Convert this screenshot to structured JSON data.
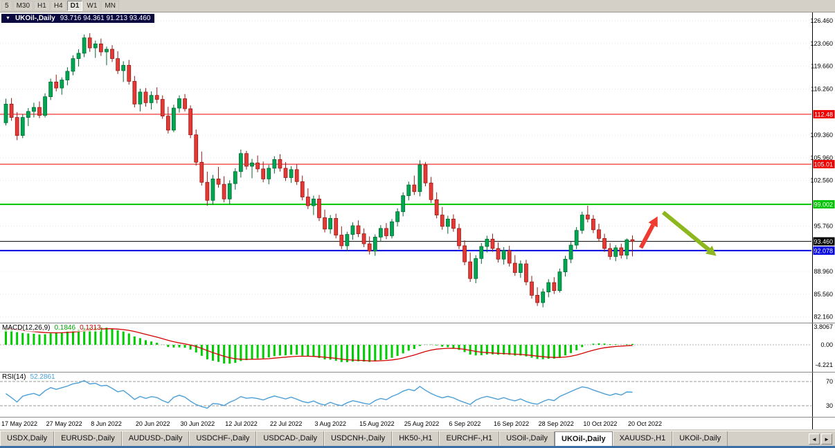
{
  "toolbar": {
    "buttons": [
      {
        "label": "5",
        "active": false
      },
      {
        "label": "M30",
        "active": false
      },
      {
        "label": "H1",
        "active": false
      },
      {
        "label": "H4",
        "active": false
      },
      {
        "label": "D1",
        "active": true
      },
      {
        "label": "W1",
        "active": false
      },
      {
        "label": "MN",
        "active": false
      }
    ]
  },
  "legend": {
    "icon": "▼",
    "symbol": "UKOil-,Daily",
    "ohlc": "93.716 94.361 91.213 93.460"
  },
  "indicators": {
    "macd": {
      "name": "MACD(12,26,9)",
      "main_value": "0.1846",
      "signal_value": "0.1313",
      "scale": [
        3.8067,
        0,
        -4.221
      ],
      "scale_labels": [
        "3.8067",
        "0.00",
        "-4.221"
      ]
    },
    "rsi": {
      "name": "RSI(14)",
      "value": "52.2861",
      "levels": [
        70,
        30
      ]
    }
  },
  "price_axis": {
    "ticks": [
      {
        "price": 126.46,
        "label": "126.460"
      },
      {
        "price": 123.06,
        "label": "123.060"
      },
      {
        "price": 119.66,
        "label": "119.660"
      },
      {
        "price": 116.26,
        "label": "116.260"
      },
      {
        "price": 109.36,
        "label": "109.360"
      },
      {
        "price": 105.96,
        "label": "105.960"
      },
      {
        "price": 102.56,
        "label": "102.560"
      },
      {
        "price": 95.76,
        "label": "95.760"
      },
      {
        "price": 88.96,
        "label": "88.960"
      },
      {
        "price": 85.56,
        "label": "85.560"
      },
      {
        "price": 82.16,
        "label": "82.160"
      }
    ]
  },
  "levels": [
    {
      "price": 112.48,
      "label": "112.48",
      "color": "#ee0000",
      "thickness": 1
    },
    {
      "price": 105.01,
      "label": "105.01",
      "color": "#ee0000",
      "thickness": 1
    },
    {
      "price": 99.002,
      "label": "99.002",
      "color": "#00c400",
      "thickness": 2
    },
    {
      "price": 93.46,
      "label": "93.460",
      "color": "#000000",
      "thickness": 1
    },
    {
      "price": 92.078,
      "label": "92.078",
      "color": "#0000e0",
      "thickness": 2
    }
  ],
  "date_axis": [
    {
      "bar": 0,
      "label": "17 May 2022"
    },
    {
      "bar": 8,
      "label": "27 May 2022"
    },
    {
      "bar": 16,
      "label": "8 Jun 2022"
    },
    {
      "bar": 24,
      "label": "20 Jun 2022"
    },
    {
      "bar": 32,
      "label": "30 Jun 2022"
    },
    {
      "bar": 40,
      "label": "12 Jul 2022"
    },
    {
      "bar": 48,
      "label": "22 Jul 2022"
    },
    {
      "bar": 56,
      "label": "3 Aug 2022"
    },
    {
      "bar": 64,
      "label": "15 Aug 2022"
    },
    {
      "bar": 72,
      "label": "25 Aug 2022"
    },
    {
      "bar": 80,
      "label": "6 Sep 2022"
    },
    {
      "bar": 88,
      "label": "16 Sep 2022"
    },
    {
      "bar": 96,
      "label": "28 Sep 2022"
    },
    {
      "bar": 104,
      "label": "10 Oct 2022"
    },
    {
      "bar": 112,
      "label": "20 Oct 2022"
    }
  ],
  "tabs": {
    "items": [
      {
        "label": "USDX,Daily",
        "active": false
      },
      {
        "label": "EURUSD-,Daily",
        "active": false
      },
      {
        "label": "AUDUSD-,Daily",
        "active": false
      },
      {
        "label": "USDCHF-,Daily",
        "active": false
      },
      {
        "label": "USDCAD-,Daily",
        "active": false
      },
      {
        "label": "USDCNH-,Daily",
        "active": false
      },
      {
        "label": "HK50-,H1",
        "active": false
      },
      {
        "label": "EURCHF-,H1",
        "active": false
      },
      {
        "label": "USOil-,Daily",
        "active": false
      },
      {
        "label": "UKOil-,Daily",
        "active": true
      },
      {
        "label": "XAUUSD-,H1",
        "active": false
      },
      {
        "label": "UKOil-,Daily",
        "active": false
      }
    ],
    "scroll_left": "◄",
    "scroll_right": "►"
  },
  "colors": {
    "up": "#00a651",
    "up_border": "#00662f",
    "down": "#e53935",
    "down_border": "#8e1a14",
    "grid": "#e6e6e6",
    "macd_hist": "#00cc00",
    "macd_signal": "#d40000",
    "rsi_line": "#4a9fd8"
  },
  "chart_data": {
    "type": "candlestick",
    "title": "UKOil-,Daily",
    "current": {
      "open": 93.716,
      "high": 94.361,
      "low": 91.213,
      "close": 93.46
    },
    "price_range_visible": {
      "min": 82.16,
      "max": 126.46
    },
    "candles": [
      [
        111.2,
        114.8,
        110.8,
        114.0
      ],
      [
        114.0,
        114.9,
        111.5,
        112.0
      ],
      [
        112.0,
        112.8,
        108.6,
        109.3
      ],
      [
        109.3,
        112.5,
        108.9,
        112.0
      ],
      [
        112.0,
        113.4,
        110.7,
        112.9
      ],
      [
        112.9,
        114.2,
        112.0,
        113.5
      ],
      [
        113.5,
        114.4,
        111.9,
        112.3
      ],
      [
        112.3,
        115.6,
        112.0,
        115.1
      ],
      [
        115.1,
        117.8,
        114.6,
        117.3
      ],
      [
        117.3,
        118.4,
        115.9,
        116.4
      ],
      [
        116.4,
        118.0,
        115.4,
        117.6
      ],
      [
        117.6,
        119.5,
        116.8,
        118.9
      ],
      [
        118.9,
        121.3,
        118.3,
        120.8
      ],
      [
        120.8,
        122.2,
        119.6,
        121.6
      ],
      [
        121.6,
        124.4,
        121.0,
        123.9
      ],
      [
        123.9,
        124.6,
        121.8,
        122.4
      ],
      [
        122.4,
        123.5,
        120.9,
        123.0
      ],
      [
        123.0,
        123.8,
        121.2,
        121.8
      ],
      [
        121.8,
        122.6,
        119.8,
        122.2
      ],
      [
        122.2,
        122.8,
        120.3,
        120.8
      ],
      [
        120.8,
        121.9,
        118.5,
        119.0
      ],
      [
        119.0,
        120.4,
        117.3,
        119.8
      ],
      [
        119.8,
        120.6,
        116.9,
        117.4
      ],
      [
        117.4,
        118.2,
        113.5,
        114.0
      ],
      [
        114.0,
        116.3,
        112.9,
        115.8
      ],
      [
        115.8,
        116.4,
        113.6,
        114.2
      ],
      [
        114.2,
        115.9,
        113.2,
        115.3
      ],
      [
        115.3,
        116.5,
        114.1,
        114.7
      ],
      [
        114.7,
        115.3,
        111.8,
        112.2
      ],
      [
        112.2,
        113.6,
        109.6,
        110.1
      ],
      [
        110.1,
        113.9,
        109.8,
        113.4
      ],
      [
        113.4,
        115.3,
        112.7,
        114.8
      ],
      [
        114.8,
        115.5,
        112.9,
        113.3
      ],
      [
        113.3,
        113.8,
        108.9,
        109.4
      ],
      [
        109.4,
        110.2,
        104.8,
        105.3
      ],
      [
        105.3,
        106.9,
        101.8,
        102.3
      ],
      [
        102.3,
        103.9,
        98.8,
        99.6
      ],
      [
        99.6,
        103.4,
        98.9,
        102.8
      ],
      [
        102.8,
        104.6,
        101.5,
        102.0
      ],
      [
        102.0,
        103.2,
        99.3,
        99.8
      ],
      [
        99.8,
        102.6,
        99.0,
        102.1
      ],
      [
        102.1,
        104.4,
        101.2,
        103.9
      ],
      [
        103.9,
        107.2,
        103.0,
        106.6
      ],
      [
        106.6,
        107.0,
        104.2,
        104.7
      ],
      [
        104.7,
        105.8,
        102.9,
        105.2
      ],
      [
        105.2,
        106.3,
        103.8,
        104.3
      ],
      [
        104.3,
        105.4,
        102.3,
        102.8
      ],
      [
        102.8,
        104.9,
        102.0,
        104.4
      ],
      [
        104.4,
        106.2,
        103.6,
        105.7
      ],
      [
        105.7,
        106.5,
        103.9,
        104.4
      ],
      [
        104.4,
        105.3,
        102.5,
        103.0
      ],
      [
        103.0,
        104.7,
        102.2,
        104.2
      ],
      [
        104.2,
        105.0,
        101.9,
        102.4
      ],
      [
        102.4,
        103.3,
        99.6,
        100.1
      ],
      [
        100.1,
        101.4,
        98.3,
        98.8
      ],
      [
        98.8,
        100.3,
        97.4,
        99.8
      ],
      [
        99.8,
        100.4,
        96.5,
        97.0
      ],
      [
        97.0,
        98.2,
        94.8,
        95.3
      ],
      [
        95.3,
        97.4,
        94.6,
        96.9
      ],
      [
        96.9,
        97.6,
        93.9,
        94.4
      ],
      [
        94.4,
        95.7,
        92.3,
        92.8
      ],
      [
        92.8,
        94.9,
        92.0,
        94.5
      ],
      [
        94.5,
        96.3,
        93.7,
        95.8
      ],
      [
        95.8,
        96.6,
        94.1,
        94.6
      ],
      [
        94.6,
        95.4,
        92.6,
        93.1
      ],
      [
        93.1,
        94.2,
        91.5,
        92.0
      ],
      [
        92.0,
        94.5,
        91.3,
        94.1
      ],
      [
        94.1,
        95.9,
        93.4,
        95.4
      ],
      [
        95.4,
        96.2,
        93.8,
        94.3
      ],
      [
        94.3,
        96.8,
        93.9,
        96.4
      ],
      [
        96.4,
        98.4,
        95.7,
        97.9
      ],
      [
        97.9,
        100.8,
        97.2,
        100.3
      ],
      [
        100.3,
        102.4,
        99.6,
        101.9
      ],
      [
        101.9,
        103.3,
        100.4,
        100.9
      ],
      [
        100.9,
        105.6,
        100.2,
        104.9
      ],
      [
        104.9,
        105.3,
        101.7,
        102.2
      ],
      [
        102.2,
        103.1,
        99.2,
        99.7
      ],
      [
        99.7,
        100.8,
        96.9,
        97.4
      ],
      [
        97.4,
        98.6,
        95.2,
        95.7
      ],
      [
        95.7,
        97.3,
        94.6,
        96.8
      ],
      [
        96.8,
        97.5,
        94.9,
        95.4
      ],
      [
        95.4,
        96.1,
        92.3,
        92.8
      ],
      [
        92.8,
        93.6,
        89.9,
        90.4
      ],
      [
        90.4,
        91.8,
        87.4,
        87.9
      ],
      [
        87.9,
        91.4,
        87.2,
        90.9
      ],
      [
        90.9,
        93.2,
        90.1,
        92.7
      ],
      [
        92.7,
        94.3,
        91.8,
        93.8
      ],
      [
        93.8,
        94.6,
        91.9,
        92.4
      ],
      [
        92.4,
        93.3,
        90.3,
        90.8
      ],
      [
        90.8,
        92.6,
        90.0,
        92.1
      ],
      [
        92.1,
        92.8,
        89.7,
        90.2
      ],
      [
        90.2,
        91.4,
        88.3,
        88.8
      ],
      [
        88.8,
        90.6,
        88.0,
        90.1
      ],
      [
        90.1,
        90.7,
        86.9,
        87.4
      ],
      [
        87.4,
        88.3,
        84.9,
        85.4
      ],
      [
        85.4,
        86.6,
        83.8,
        84.3
      ],
      [
        84.3,
        86.4,
        83.6,
        85.9
      ],
      [
        85.9,
        87.8,
        85.1,
        87.3
      ],
      [
        87.3,
        88.1,
        85.6,
        86.1
      ],
      [
        86.1,
        89.4,
        85.8,
        88.9
      ],
      [
        88.9,
        91.3,
        88.2,
        90.8
      ],
      [
        90.8,
        93.4,
        90.2,
        92.9
      ],
      [
        92.9,
        95.6,
        92.3,
        95.1
      ],
      [
        95.1,
        97.9,
        94.6,
        97.4
      ],
      [
        97.4,
        98.8,
        96.3,
        96.8
      ],
      [
        96.8,
        97.4,
        94.7,
        95.2
      ],
      [
        95.2,
        96.1,
        93.4,
        93.9
      ],
      [
        93.9,
        94.6,
        91.9,
        92.4
      ],
      [
        92.4,
        93.2,
        90.7,
        91.2
      ],
      [
        91.2,
        92.9,
        90.5,
        92.5
      ],
      [
        92.5,
        93.1,
        90.9,
        91.4
      ],
      [
        91.4,
        93.9,
        90.8,
        93.7
      ],
      [
        93.716,
        94.361,
        91.213,
        93.46
      ]
    ],
    "annotations": [
      {
        "name": "bullish-arrow",
        "type": "arrow",
        "direction": "up",
        "color": "#ef3b2f",
        "from": {
          "bar": 113.8,
          "price": 92.5
        },
        "to": {
          "bar": 116.8,
          "price": 97.2
        }
      },
      {
        "name": "bearish-arrow",
        "type": "arrow",
        "direction": "down",
        "color": "#8cb71e",
        "from": {
          "bar": 117.8,
          "price": 97.8
        },
        "to": {
          "bar": 127.3,
          "price": 91.3
        }
      }
    ]
  }
}
